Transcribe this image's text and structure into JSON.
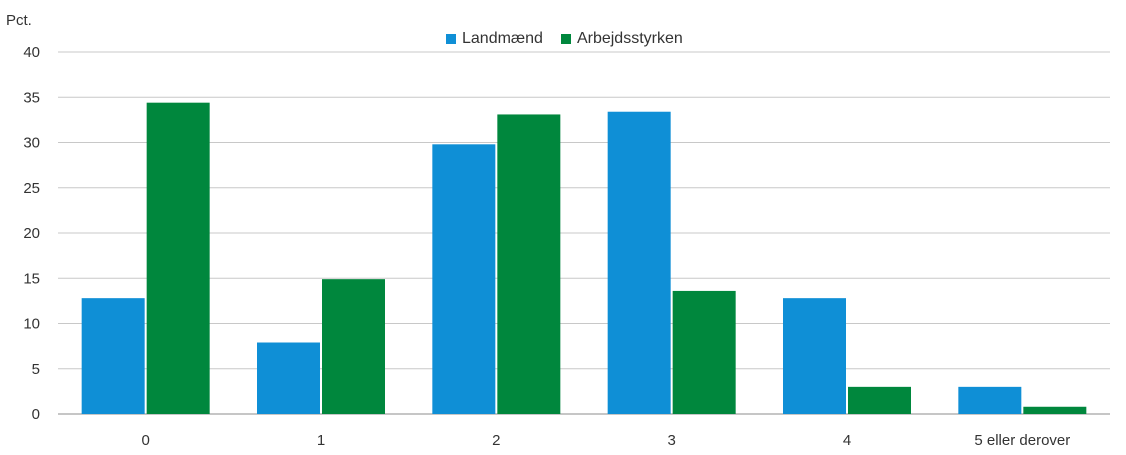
{
  "chart_data": {
    "type": "bar",
    "title": "",
    "xlabel": "",
    "ylabel": "Pct.",
    "categories": [
      "0",
      "1",
      "2",
      "3",
      "4",
      "5 eller derover"
    ],
    "series": [
      {
        "name": "Landmænd",
        "color": "#0f8fd6",
        "values": [
          12.8,
          7.9,
          29.8,
          33.4,
          12.8,
          3.0
        ]
      },
      {
        "name": "Arbejdsstyrken",
        "color": "#00873d",
        "values": [
          34.4,
          14.9,
          33.1,
          13.6,
          3.0,
          0.8
        ]
      }
    ],
    "ylim": [
      0,
      40
    ],
    "yticks": [
      0,
      5,
      10,
      15,
      20,
      25,
      30,
      35,
      40
    ],
    "grid": true,
    "legend_position": "top-center"
  }
}
